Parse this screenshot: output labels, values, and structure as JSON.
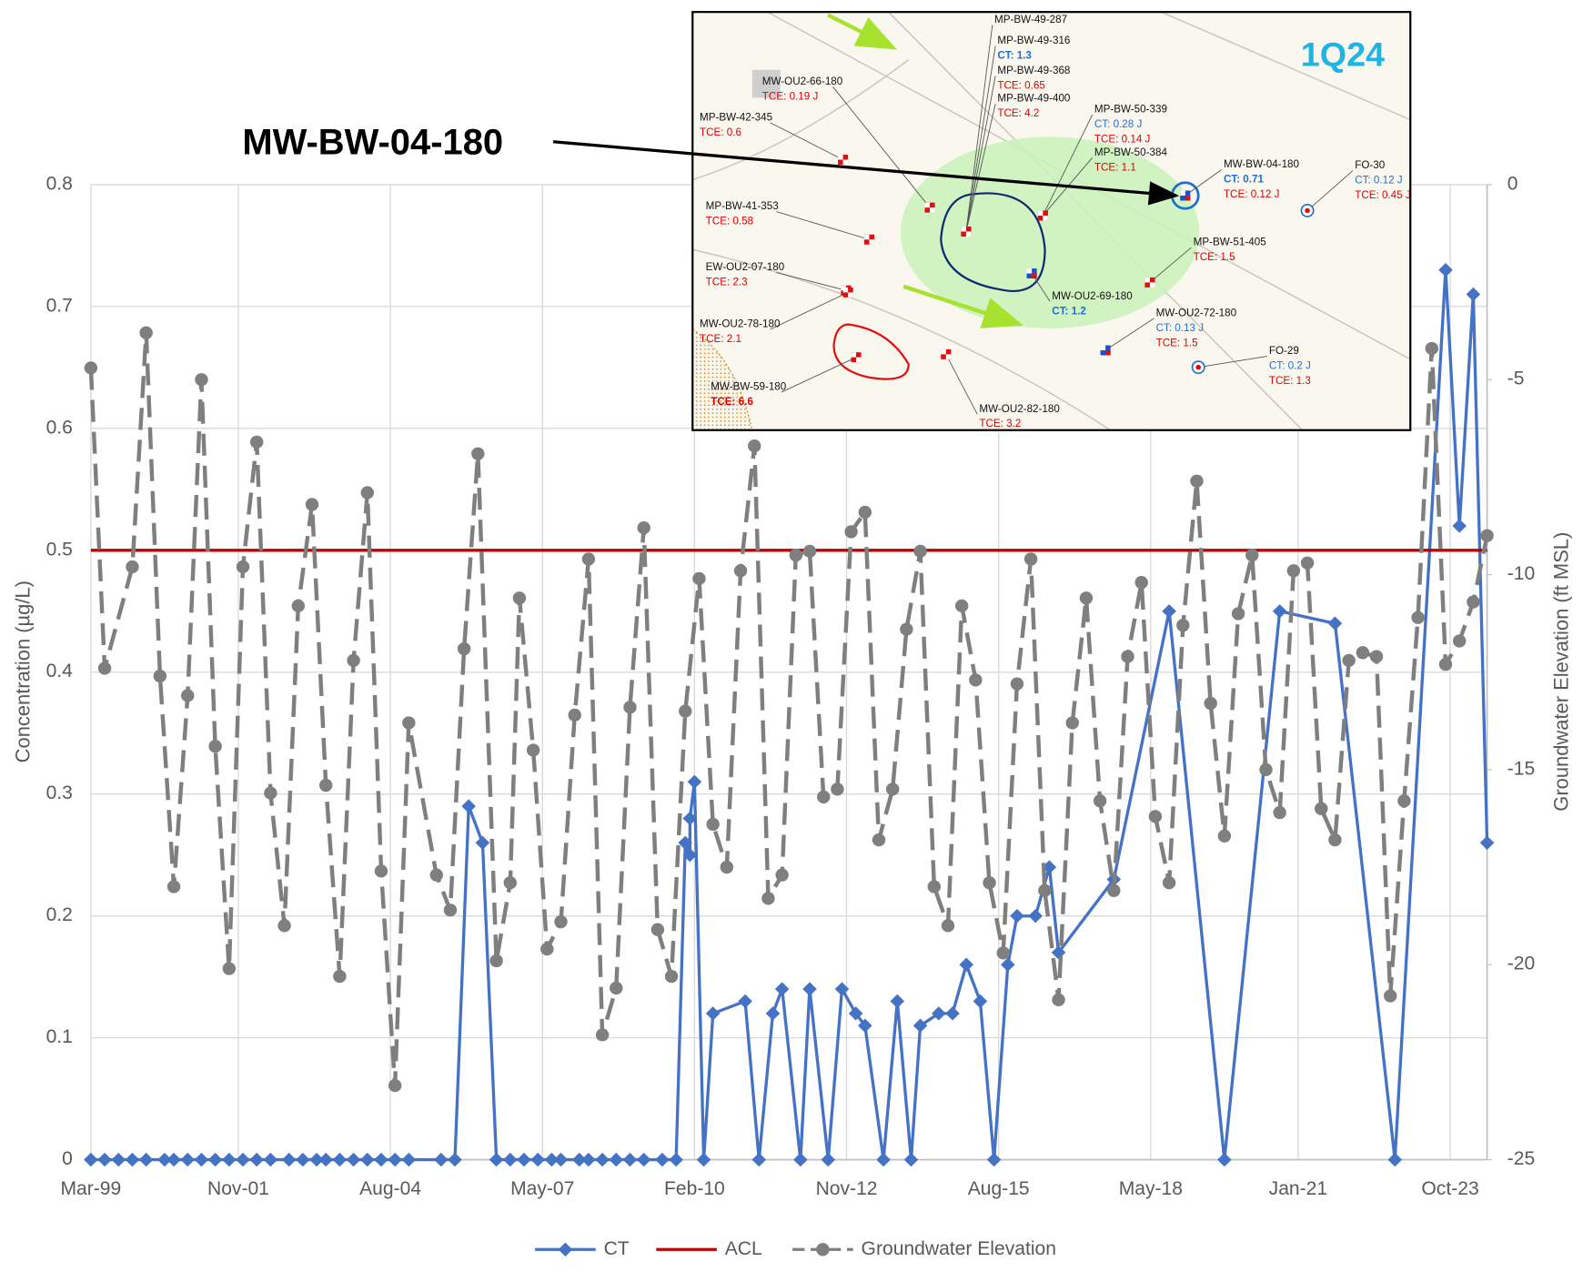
{
  "chart_data": {
    "type": "line",
    "annotation": "MW-BW-04-180",
    "y_label": "Concentration (µg/L)",
    "y2_label": "Groundwater Elevation (ft MSL)",
    "xlim": [
      "1999-03",
      "2024-06"
    ],
    "xticks": [
      {
        "value": "1999-03",
        "label": "Mar-99"
      },
      {
        "value": "2001-11",
        "label": "Nov-01"
      },
      {
        "value": "2004-08",
        "label": "Aug-04"
      },
      {
        "value": "2007-05",
        "label": "May-07"
      },
      {
        "value": "2010-02",
        "label": "Feb-10"
      },
      {
        "value": "2012-11",
        "label": "Nov-12"
      },
      {
        "value": "2015-08",
        "label": "Aug-15"
      },
      {
        "value": "2018-05",
        "label": "May-18"
      },
      {
        "value": "2021-01",
        "label": "Jan-21"
      },
      {
        "value": "2023-10",
        "label": "Oct-23"
      }
    ],
    "ylim": [
      0,
      0.8
    ],
    "yticks": [
      0,
      0.1,
      0.2,
      0.3,
      0.4,
      0.5,
      0.6,
      0.7,
      0.8
    ],
    "y2lim": [
      -25,
      0
    ],
    "y2ticks": [
      -25,
      -20,
      -15,
      -10,
      -5,
      0
    ],
    "grid": true,
    "legend": "bottom",
    "series": [
      {
        "name": "CT",
        "color": "#4472c4",
        "marker": "diamond",
        "dash": false,
        "x": [
          "1999-03",
          "1999-06",
          "1999-09",
          "1999-12",
          "2000-03",
          "2000-07",
          "2000-09",
          "2000-12",
          "2001-03",
          "2001-06",
          "2001-09",
          "2001-12",
          "2002-03",
          "2002-06",
          "2002-10",
          "2003-01",
          "2003-04",
          "2003-06",
          "2003-09",
          "2003-12",
          "2004-03",
          "2004-06",
          "2004-09",
          "2004-12",
          "2005-07",
          "2005-10",
          "2006-01",
          "2006-04",
          "2006-07",
          "2006-10",
          "2007-01",
          "2007-04",
          "2007-07",
          "2007-09",
          "2008-01",
          "2008-03",
          "2008-06",
          "2008-09",
          "2008-12",
          "2009-03",
          "2009-07",
          "2009-10",
          "2009-12",
          "2010-01",
          "2010-01",
          "2010-02",
          "2010-04",
          "2010-06",
          "2011-01",
          "2011-04",
          "2011-07",
          "2011-09",
          "2012-01",
          "2012-03",
          "2012-07",
          "2012-10",
          "2013-01",
          "2013-03",
          "2013-07",
          "2013-10",
          "2014-01",
          "2014-03",
          "2014-07",
          "2014-10",
          "2015-01",
          "2015-04",
          "2015-07",
          "2015-10",
          "2015-12",
          "2016-04",
          "2016-07",
          "2016-09",
          "2017-09",
          "2018-09",
          "2019-09",
          "2020-09",
          "2021-09",
          "2022-10",
          "2023-09",
          "2023-12",
          "2024-03",
          "2024-06"
        ],
        "values": [
          0,
          0,
          0,
          0,
          0,
          0,
          0,
          0,
          0,
          0,
          0,
          0,
          0,
          0,
          0,
          0,
          0,
          0,
          0,
          0,
          0,
          0,
          0,
          0,
          0,
          0,
          0.29,
          0.26,
          0,
          0,
          0,
          0,
          0,
          0,
          0,
          0,
          0,
          0,
          0,
          0,
          0,
          0,
          0.26,
          0.25,
          0.28,
          0.31,
          0,
          0.12,
          0.13,
          0,
          0.12,
          0.14,
          0,
          0.14,
          0,
          0.14,
          0.12,
          0.11,
          0,
          0.13,
          0,
          0.11,
          0.12,
          0.12,
          0.16,
          0.13,
          0,
          0.16,
          0.2,
          0.2,
          0.24,
          0.17,
          0.23,
          0.45,
          0,
          0.45,
          0.44,
          0,
          0.73,
          0.52,
          0.71,
          0.26
        ]
      },
      {
        "name": "ACL",
        "color": "#c00000",
        "marker": "none",
        "dash": false,
        "x": [
          "1999-03",
          "2024-06"
        ],
        "values": [
          0.5,
          0.5
        ]
      },
      {
        "name": "Groundwater Elevation",
        "color": "#7f7f7f",
        "marker": "circle",
        "dash": true,
        "axis": "y2",
        "x": [
          "1999-03",
          "1999-06",
          "1999-12",
          "2000-03",
          "2000-06",
          "2000-09",
          "2000-12",
          "2001-03",
          "2001-06",
          "2001-09",
          "2001-12",
          "2002-03",
          "2002-06",
          "2002-09",
          "2002-12",
          "2003-03",
          "2003-06",
          "2003-09",
          "2003-12",
          "2004-03",
          "2004-06",
          "2004-09",
          "2004-12",
          "2005-06",
          "2005-09",
          "2005-12",
          "2006-03",
          "2006-07",
          "2006-10",
          "2006-12",
          "2007-03",
          "2007-06",
          "2007-09",
          "2007-12",
          "2008-03",
          "2008-06",
          "2008-09",
          "2008-12",
          "2009-03",
          "2009-06",
          "2009-09",
          "2009-12",
          "2010-03",
          "2010-06",
          "2010-09",
          "2010-12",
          "2011-03",
          "2011-06",
          "2011-09",
          "2011-12",
          "2012-03",
          "2012-06",
          "2012-09",
          "2012-12",
          "2013-03",
          "2013-06",
          "2013-09",
          "2013-12",
          "2014-03",
          "2014-06",
          "2014-09",
          "2014-12",
          "2015-03",
          "2015-06",
          "2015-09",
          "2015-12",
          "2016-03",
          "2016-06",
          "2016-09",
          "2016-12",
          "2017-03",
          "2017-06",
          "2017-09",
          "2017-12",
          "2018-03",
          "2018-06",
          "2018-09",
          "2018-12",
          "2019-03",
          "2019-06",
          "2019-09",
          "2019-12",
          "2020-03",
          "2020-06",
          "2020-09",
          "2020-12",
          "2021-03",
          "2021-06",
          "2021-09",
          "2021-12",
          "2022-03",
          "2022-06",
          "2022-09",
          "2022-12",
          "2023-03",
          "2023-06",
          "2023-09",
          "2023-12",
          "2024-03",
          "2024-06"
        ],
        "values": [
          -4.7,
          -12.4,
          -9.8,
          -3.8,
          -12.6,
          -18.0,
          -13.1,
          -5.0,
          -14.4,
          -20.1,
          -9.8,
          -6.6,
          -15.6,
          -19.0,
          -10.8,
          -8.2,
          -15.4,
          -20.3,
          -12.2,
          -7.9,
          -17.6,
          -23.1,
          -13.8,
          -17.7,
          -18.6,
          -11.9,
          -6.9,
          -19.9,
          -17.9,
          -10.6,
          -14.5,
          -19.6,
          -18.9,
          -13.6,
          -9.6,
          -21.8,
          -20.6,
          -13.4,
          -8.8,
          -19.1,
          -20.3,
          -13.5,
          -10.1,
          -16.4,
          -17.5,
          -9.9,
          -6.7,
          -18.3,
          -17.7,
          -9.5,
          -9.4,
          -15.7,
          -15.5,
          -8.9,
          -8.4,
          -16.8,
          -15.5,
          -11.4,
          -9.4,
          -18.0,
          -19.0,
          -10.8,
          -12.7,
          -17.9,
          -19.7,
          -12.8,
          -9.6,
          -18.1,
          -20.9,
          -13.8,
          -10.6,
          -15.8,
          -18.1,
          -12.1,
          -10.2,
          -16.2,
          -17.9,
          -11.3,
          -7.6,
          -13.3,
          -16.7,
          -11.0,
          -9.5,
          -15.0,
          -16.1,
          -9.9,
          -9.7,
          -16.0,
          -16.8,
          -12.2,
          -12.0,
          -12.1,
          -20.8,
          -15.8,
          -11.1,
          -4.2,
          -12.3,
          -11.7,
          -10.7,
          -9.0
        ]
      }
    ]
  },
  "inset_map": {
    "title": "1Q24",
    "wells": [
      {
        "name": "MP-BW-49-287",
        "results": []
      },
      {
        "name": "MP-BW-49-316",
        "results": [
          "CT: 1.3"
        ]
      },
      {
        "name": "MP-BW-49-368",
        "results": [
          "TCE: 0.65"
        ]
      },
      {
        "name": "MP-BW-49-400",
        "results": [
          "TCE: 4.2"
        ]
      },
      {
        "name": "MW-OU2-66-180",
        "results": [
          "TCE: 0.19 J"
        ]
      },
      {
        "name": "MP-BW-42-345",
        "results": [
          "TCE: 0.6"
        ]
      },
      {
        "name": "MP-BW-50-339",
        "results": [
          "CT: 0.28 J",
          "TCE: 0.14 J"
        ]
      },
      {
        "name": "MP-BW-50-384",
        "results": [
          "TCE: 1.1"
        ]
      },
      {
        "name": "MW-BW-04-180",
        "results": [
          "CT: 0.71",
          "TCE: 0.12 J"
        ]
      },
      {
        "name": "FO-30",
        "results": [
          "CT: 0.12 J",
          "TCE: 0.45 J"
        ]
      },
      {
        "name": "MP-BW-41-353",
        "results": [
          "TCE: 0.58"
        ]
      },
      {
        "name": "MP-BW-51-405",
        "results": [
          "TCE: 1.5"
        ]
      },
      {
        "name": "EW-OU2-07-180",
        "results": [
          "TCE: 2.3"
        ]
      },
      {
        "name": "MW-OU2-69-180",
        "results": [
          "CT: 1.2"
        ]
      },
      {
        "name": "MW-OU2-72-180",
        "results": [
          "CT: 0.13 J",
          "TCE: 1.5"
        ]
      },
      {
        "name": "MW-OU2-78-180",
        "results": [
          "TCE: 2.1"
        ]
      },
      {
        "name": "FO-29",
        "results": [
          "CT: 0.2 J",
          "TCE: 1.3"
        ]
      },
      {
        "name": "MW-BW-59-180",
        "results": [
          "TCE: 6.6"
        ]
      },
      {
        "name": "MW-OU2-82-180",
        "results": [
          "TCE: 3.2"
        ]
      }
    ]
  }
}
